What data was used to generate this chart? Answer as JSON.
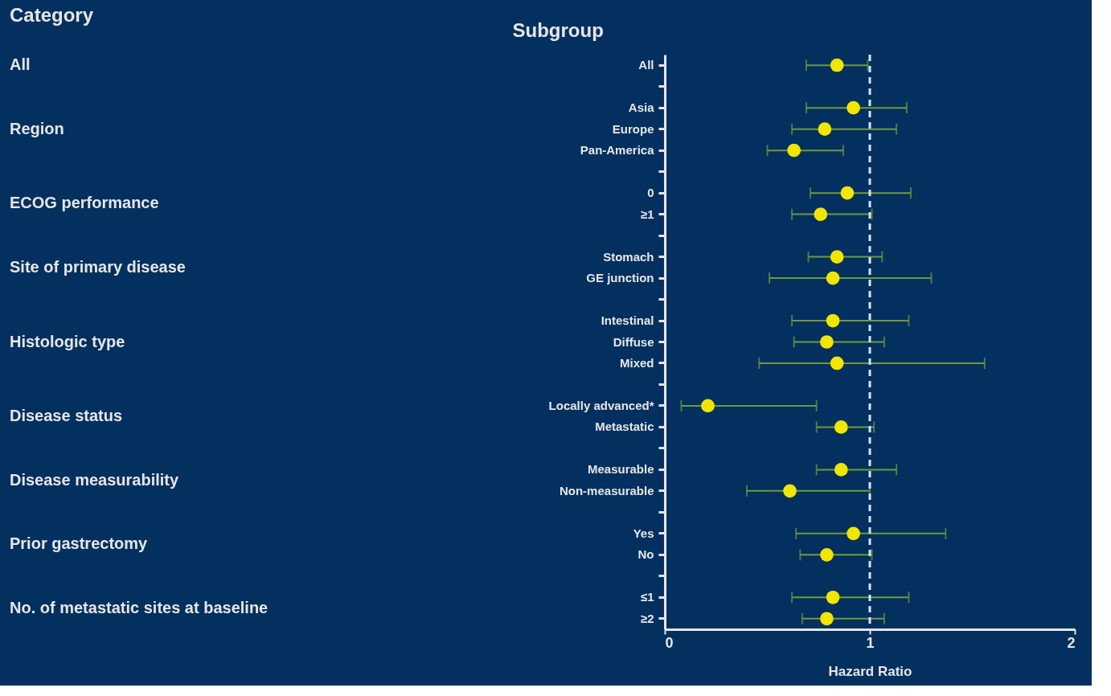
{
  "chart_data": {
    "type": "scatter",
    "orientation": "horizontal",
    "title": "Category",
    "ylabel": "Subgroup",
    "xlabel": "Hazard Ratio",
    "categories": [
      "All",
      null,
      "Asia",
      "Europe",
      "Pan-America",
      null,
      "0",
      "≥1",
      null,
      "Stomach",
      "GE junction",
      null,
      "Intestinal",
      "Diffuse",
      "Mixed",
      null,
      "Locally advanced*",
      "Metastatic",
      null,
      "Measurable",
      "Non-measurable",
      null,
      "Yes",
      "No",
      null,
      "≤1",
      "≥2"
    ],
    "values": [
      0.84,
      null,
      0.92,
      0.78,
      0.63,
      null,
      0.89,
      0.76,
      null,
      0.84,
      0.82,
      null,
      0.82,
      0.79,
      0.84,
      null,
      0.21,
      0.86,
      null,
      0.86,
      0.61,
      null,
      0.92,
      0.79,
      null,
      0.82,
      0.79
    ],
    "errors": [
      [
        0.69,
        0.99
      ],
      null,
      [
        0.69,
        1.18
      ],
      [
        0.62,
        1.13
      ],
      [
        0.5,
        0.87
      ],
      null,
      [
        0.71,
        1.2
      ],
      [
        0.62,
        1.01
      ],
      null,
      [
        0.7,
        1.06
      ],
      [
        0.51,
        1.3
      ],
      null,
      [
        0.62,
        1.19
      ],
      [
        0.63,
        1.07
      ],
      [
        0.46,
        1.56
      ],
      null,
      [
        0.08,
        0.74
      ],
      [
        0.74,
        1.02
      ],
      null,
      [
        0.74,
        1.13
      ],
      [
        0.4,
        1.0
      ],
      null,
      [
        0.64,
        1.37
      ],
      [
        0.66,
        1.01
      ],
      null,
      [
        0.62,
        1.19
      ],
      [
        0.67,
        1.07
      ]
    ],
    "color": "#f2e600",
    "marker": "circle",
    "xlim": [
      0,
      2
    ],
    "xticks": [
      0,
      1,
      2
    ],
    "grid": false,
    "ref_lines": [
      {
        "axis": "x",
        "value": 1,
        "color": "#d8e4ee",
        "line_style": "dashed"
      }
    ],
    "annotations": [
      "All",
      "Region",
      "ECOG performance",
      "Site of primary disease",
      "Histologic type",
      "Disease status",
      "Disease measurability",
      "Prior gastrectomy",
      "No. of metastatic sites at baseline"
    ]
  }
}
